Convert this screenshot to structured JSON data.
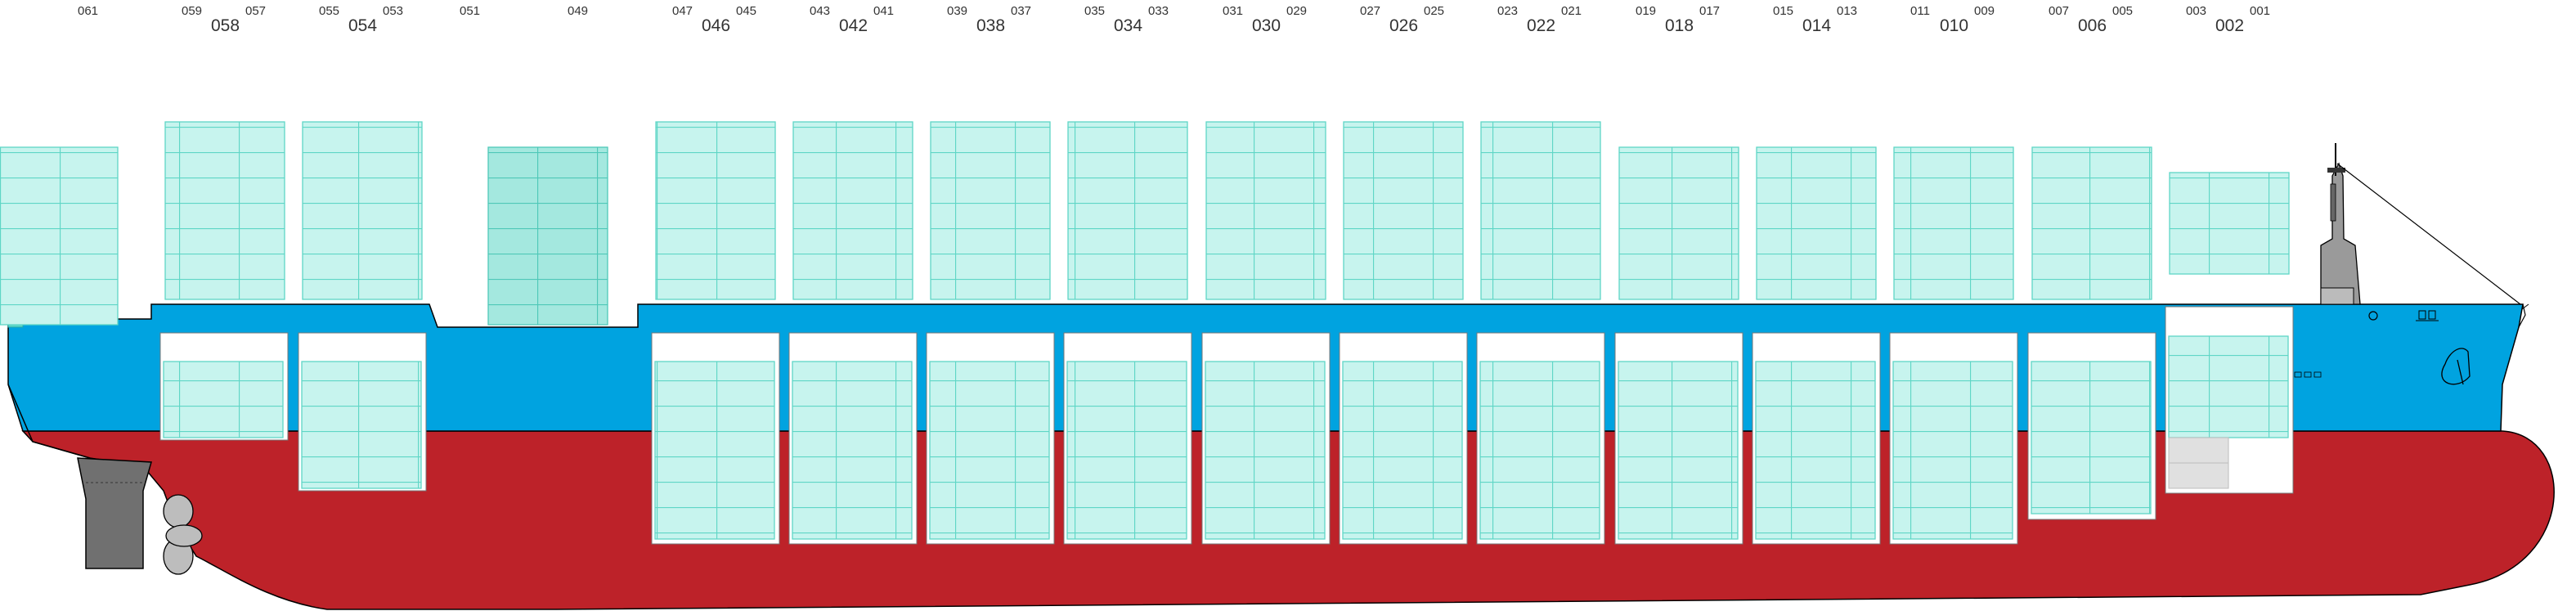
{
  "colors": {
    "hull_blue": "#00a3e0",
    "hull_red": "#bd2229",
    "container_fill": "#c7f4ee",
    "container_fill_dark": "#a4e8df",
    "container_line": "#5fd6c6",
    "hatch_white": "#ffffff",
    "grey_container": "#e0e0e0",
    "machinery_grey": "#9a9a9a",
    "outline": "#000000",
    "label": "#333333"
  },
  "bays": [
    {
      "id": "bay-061",
      "label_main": "",
      "label_left": "",
      "label_right": "061"
    },
    {
      "id": "bay-058",
      "label_main": "058",
      "label_left": "059",
      "label_right": "057"
    },
    {
      "id": "bay-054",
      "label_main": "054",
      "label_left": "055",
      "label_right": "053"
    },
    {
      "id": "bay-051",
      "label_main": "",
      "label_left": "051",
      "label_right": ""
    },
    {
      "id": "bay-049",
      "label_main": "",
      "label_left": "",
      "label_right": "049"
    },
    {
      "id": "bay-046",
      "label_main": "046",
      "label_left": "047",
      "label_right": "045"
    },
    {
      "id": "bay-042",
      "label_main": "042",
      "label_left": "043",
      "label_right": "041"
    },
    {
      "id": "bay-038",
      "label_main": "038",
      "label_left": "039",
      "label_right": "037"
    },
    {
      "id": "bay-034",
      "label_main": "034",
      "label_left": "035",
      "label_right": "033"
    },
    {
      "id": "bay-030",
      "label_main": "030",
      "label_left": "031",
      "label_right": "029"
    },
    {
      "id": "bay-026",
      "label_main": "026",
      "label_left": "027",
      "label_right": "025"
    },
    {
      "id": "bay-022",
      "label_main": "022",
      "label_left": "023",
      "label_right": "021"
    },
    {
      "id": "bay-018",
      "label_main": "018",
      "label_left": "019",
      "label_right": "017"
    },
    {
      "id": "bay-014",
      "label_main": "014",
      "label_left": "015",
      "label_right": "013"
    },
    {
      "id": "bay-010",
      "label_main": "010",
      "label_left": "011",
      "label_right": "009"
    },
    {
      "id": "bay-006",
      "label_main": "006",
      "label_left": "007",
      "label_right": "005"
    },
    {
      "id": "bay-002",
      "label_main": "002",
      "label_left": "003",
      "label_right": "001"
    }
  ]
}
